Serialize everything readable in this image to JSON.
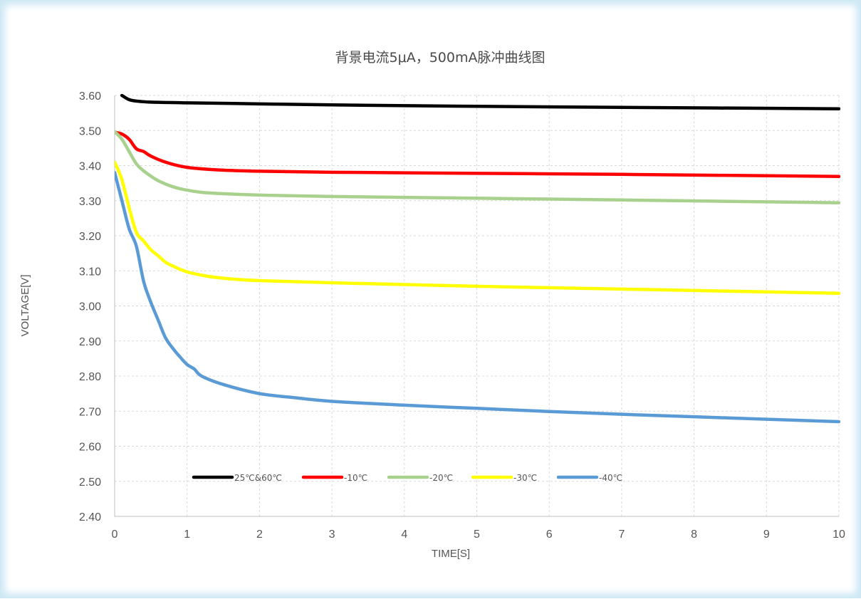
{
  "chart_data": {
    "type": "line",
    "title": "背景电流5μA，500mA脉冲曲线图",
    "xlabel": "TIME[S]",
    "ylabel": "VOLTAGE[V]",
    "xlim": [
      0,
      10
    ],
    "ylim": [
      2.4,
      3.6
    ],
    "x_ticks": [
      "0",
      "1",
      "2",
      "3",
      "4",
      "5",
      "6",
      "7",
      "8",
      "9",
      "10"
    ],
    "y_ticks": [
      "2.40",
      "2.50",
      "2.60",
      "2.70",
      "2.80",
      "2.90",
      "3.00",
      "3.10",
      "3.20",
      "3.30",
      "3.40",
      "3.50",
      "3.60"
    ],
    "grid": true,
    "legend_position": "bottom-inside",
    "series": [
      {
        "name": "25℃&60℃",
        "color": "#000000",
        "x": [
          0.1,
          0.2,
          0.3,
          0.5,
          1,
          2,
          3,
          5,
          7,
          10
        ],
        "y": [
          3.6,
          3.588,
          3.584,
          3.581,
          3.579,
          3.576,
          3.573,
          3.569,
          3.566,
          3.562
        ]
      },
      {
        "name": "-10℃",
        "color": "#ff0000",
        "x": [
          0,
          0.1,
          0.2,
          0.3,
          0.4,
          0.5,
          0.7,
          1,
          1.5,
          2,
          3,
          5,
          7,
          10
        ],
        "y": [
          3.495,
          3.49,
          3.475,
          3.448,
          3.44,
          3.427,
          3.41,
          3.395,
          3.387,
          3.384,
          3.381,
          3.378,
          3.375,
          3.369
        ]
      },
      {
        "name": "-20℃",
        "color": "#a9d18e",
        "x": [
          0,
          0.1,
          0.2,
          0.3,
          0.4,
          0.5,
          0.6,
          0.8,
          1,
          1.3,
          2,
          3,
          5,
          7,
          10
        ],
        "y": [
          3.497,
          3.475,
          3.44,
          3.405,
          3.385,
          3.37,
          3.357,
          3.34,
          3.33,
          3.322,
          3.316,
          3.312,
          3.307,
          3.302,
          3.294
        ]
      },
      {
        "name": "-30℃",
        "color": "#ffff00",
        "x": [
          0,
          0.1,
          0.2,
          0.3,
          0.4,
          0.5,
          0.6,
          0.7,
          0.8,
          1,
          1.3,
          1.6,
          2,
          3,
          5,
          7,
          10
        ],
        "y": [
          3.41,
          3.36,
          3.28,
          3.21,
          3.185,
          3.16,
          3.143,
          3.125,
          3.114,
          3.097,
          3.084,
          3.077,
          3.072,
          3.066,
          3.056,
          3.048,
          3.036
        ]
      },
      {
        "name": "-40℃",
        "color": "#5b9bd5",
        "x": [
          0,
          0.1,
          0.2,
          0.3,
          0.4,
          0.5,
          0.6,
          0.7,
          0.8,
          0.9,
          1,
          1.1,
          1.2,
          1.5,
          2,
          2.5,
          3,
          4,
          5,
          6,
          7,
          8,
          9,
          10
        ],
        "y": [
          3.38,
          3.3,
          3.22,
          3.17,
          3.07,
          3.01,
          2.96,
          2.91,
          2.88,
          2.855,
          2.833,
          2.82,
          2.8,
          2.776,
          2.75,
          2.738,
          2.728,
          2.717,
          2.708,
          2.699,
          2.691,
          2.684,
          2.677,
          2.67
        ]
      }
    ]
  }
}
